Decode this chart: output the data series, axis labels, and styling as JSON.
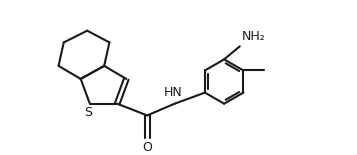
{
  "bg_color": "#ffffff",
  "line_color": "#1a1a1a",
  "line_width": 1.5,
  "font_size": 8.5,
  "figsize": [
    3.57,
    1.55
  ],
  "dpi": 100,
  "xlim": [
    0,
    10.5
  ],
  "ylim": [
    0,
    5.5
  ]
}
